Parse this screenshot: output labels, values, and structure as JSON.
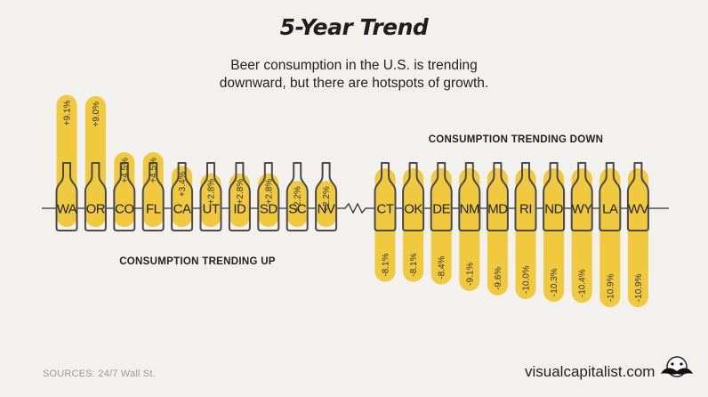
{
  "header": {
    "title": "5-Year Trend",
    "subtitle_lines": [
      "Beer consumption in the U.S. is trending",
      "downward, but there are hotspots of growth."
    ]
  },
  "footer": {
    "sources": "SOURCES: 24/7 Wall St.",
    "brand": "visualcapitalist.com"
  },
  "colors": {
    "bar": "#f0c93f",
    "bottle_stroke": "#4a4a4a",
    "background": "#f3f1ee",
    "text": "#222222"
  },
  "chart_data": {
    "type": "bar",
    "unit": "%",
    "groups": [
      {
        "label": "CONSUMPTION TRENDING UP",
        "categories": [
          "WA",
          "OR",
          "CO",
          "FL",
          "CA",
          "UT",
          "ID",
          "SD",
          "SC",
          "NV"
        ],
        "values": [
          9.1,
          9.0,
          4.5,
          4.5,
          3.4,
          2.8,
          2.8,
          2.8,
          2.2,
          2.2
        ],
        "value_labels": [
          "+9.1%",
          "+9.0%",
          "+4.5%",
          "+4.5%",
          "+3.4%",
          "+2.8%",
          "+2.8%",
          "+2.8%",
          "+2.2%",
          "+2.2%"
        ]
      },
      {
        "label": "CONSUMPTION TRENDING DOWN",
        "categories": [
          "CT",
          "OK",
          "DE",
          "NM",
          "MD",
          "RI",
          "ND",
          "WY",
          "LA",
          "WV"
        ],
        "values": [
          -8.1,
          -8.1,
          -8.4,
          -9.1,
          -9.6,
          -10.0,
          -10.3,
          -10.4,
          -10.9,
          -10.9
        ],
        "value_labels": [
          "-8.1%",
          "-8.1%",
          "-8.4%",
          "-9.1%",
          "-9.6%",
          "-10.0%",
          "-10.3%",
          "-10.4%",
          "-10.9%",
          "-10.9%"
        ]
      }
    ]
  }
}
